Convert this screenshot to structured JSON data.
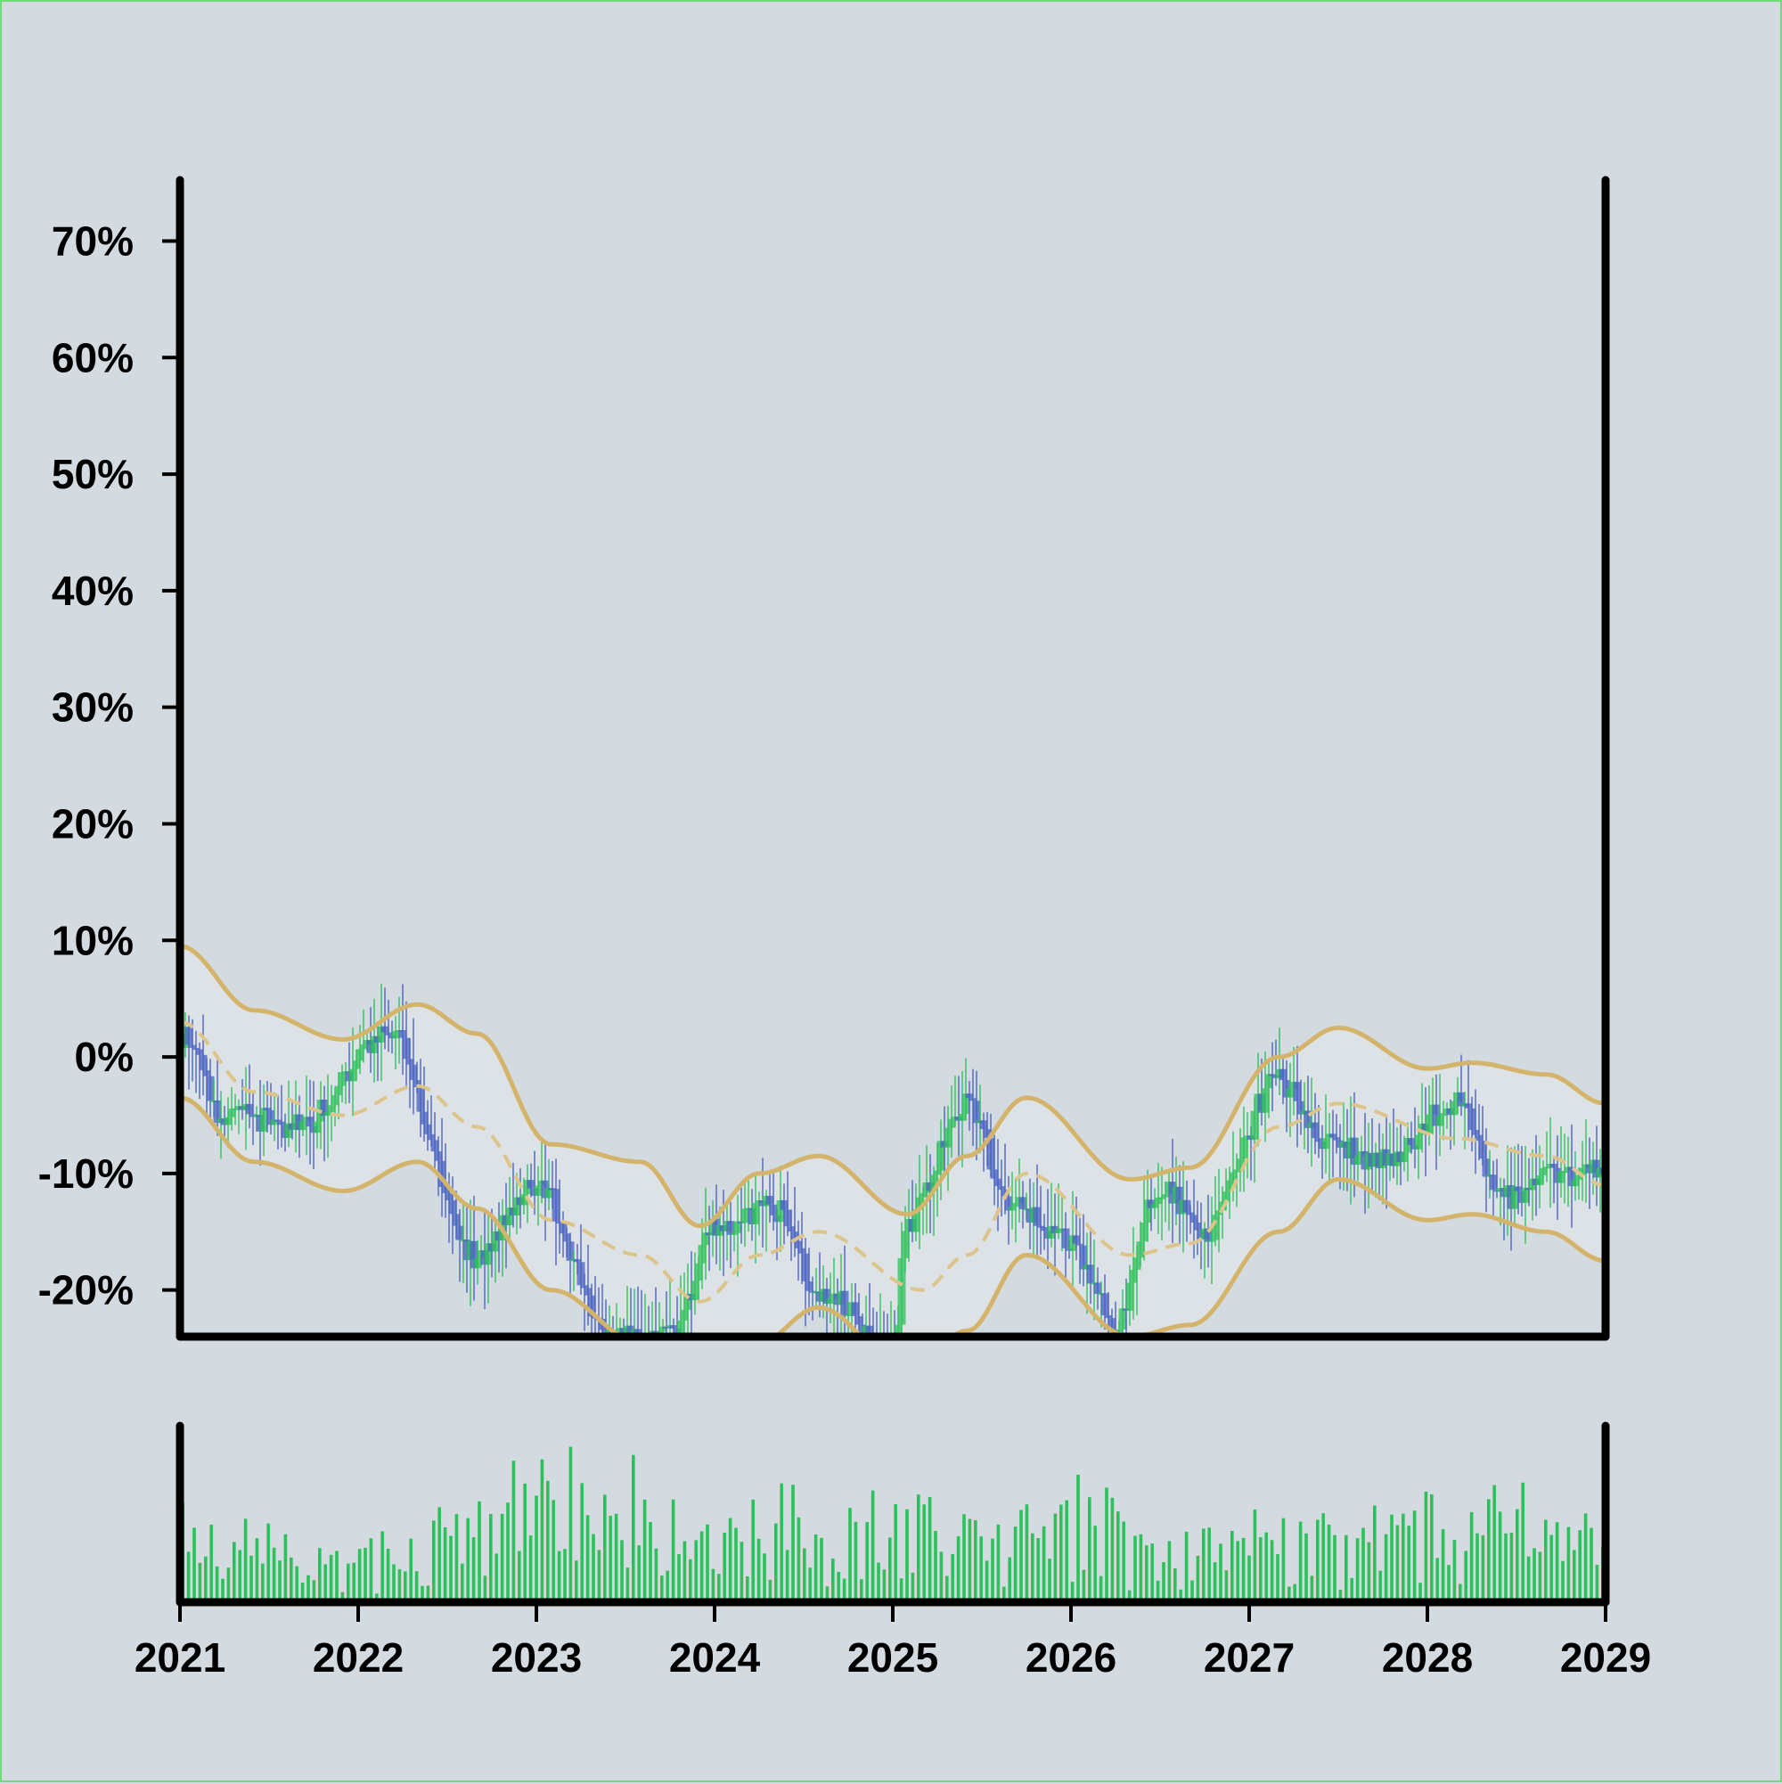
{
  "chart_data": {
    "type": "candlestick",
    "title": "",
    "xlabel": "",
    "ylabel": "",
    "x_ticks": [
      "2021",
      "2022",
      "2023",
      "2024",
      "2025",
      "2026",
      "2027",
      "2028",
      "2029"
    ],
    "x_range": [
      "2021",
      "2029"
    ],
    "y_ticks": [
      "-20%",
      "-10%",
      "0%",
      "10%",
      "20%",
      "30%",
      "40%",
      "50%",
      "60%",
      "70%"
    ],
    "y_range": [
      -24,
      76
    ],
    "grid": false,
    "legend": "none",
    "colors": {
      "up": "#2ec05a",
      "down": "#4a62c2",
      "band": "#d4b46a",
      "band_fill": "#dde3e6",
      "volume": "#2ec05a",
      "background": "#d3dae0",
      "frame": "#6fdc7a"
    },
    "series": [
      {
        "kind": "close",
        "keyframes": [
          [
            "2021-01",
            2
          ],
          [
            "2021-04",
            -5
          ],
          [
            "2021-09",
            -6
          ],
          [
            "2022-03",
            2
          ],
          [
            "2022-09",
            -17
          ],
          [
            "2023-01",
            -11
          ],
          [
            "2023-06",
            -24
          ],
          [
            "2023-10",
            -24
          ],
          [
            "2024-01",
            -15
          ],
          [
            "2024-05",
            -13
          ],
          [
            "2024-08",
            -20
          ],
          [
            "2025-01",
            -25
          ],
          [
            "2025-02",
            -14
          ],
          [
            "2025-06",
            -4
          ],
          [
            "2025-09",
            -13
          ],
          [
            "2026-01",
            -16
          ],
          [
            "2026-04",
            -23
          ],
          [
            "2026-07",
            -11
          ],
          [
            "2026-10",
            -15
          ],
          [
            "2027-03",
            -2
          ],
          [
            "2027-06",
            -7
          ],
          [
            "2027-10",
            -9
          ],
          [
            "2028-03",
            -4
          ],
          [
            "2028-06",
            -12
          ],
          [
            "2028-10",
            -10
          ],
          [
            "2029-01",
            -10
          ]
        ]
      },
      {
        "kind": "band_middle",
        "keyframes": [
          [
            "2021-01",
            3
          ],
          [
            "2021-06",
            -3
          ],
          [
            "2021-12",
            -5
          ],
          [
            "2022-05",
            -2.5
          ],
          [
            "2022-09",
            -6
          ],
          [
            "2023-02",
            -14
          ],
          [
            "2023-08",
            -17
          ],
          [
            "2023-12",
            -21
          ],
          [
            "2024-04",
            -17
          ],
          [
            "2024-08",
            -15
          ],
          [
            "2025-03",
            -20
          ],
          [
            "2025-06",
            -17
          ],
          [
            "2025-10",
            -10
          ],
          [
            "2026-05",
            -17
          ],
          [
            "2026-09",
            -16
          ],
          [
            "2027-03",
            -6
          ],
          [
            "2027-07",
            -4
          ],
          [
            "2028-03",
            -7
          ],
          [
            "2028-09",
            -8.5
          ],
          [
            "2029-01",
            -11
          ]
        ]
      },
      {
        "kind": "band_upper",
        "keyframes": [
          [
            "2021-01",
            9.5
          ],
          [
            "2021-06",
            4
          ],
          [
            "2021-12",
            1.5
          ],
          [
            "2022-05",
            4.5
          ],
          [
            "2022-09",
            2
          ],
          [
            "2023-02",
            -7.5
          ],
          [
            "2023-08",
            -9
          ],
          [
            "2023-12",
            -14.5
          ],
          [
            "2024-04",
            -10
          ],
          [
            "2024-08",
            -8.5
          ],
          [
            "2025-02",
            -13.5
          ],
          [
            "2025-06",
            -8.5
          ],
          [
            "2025-10",
            -3.5
          ],
          [
            "2026-05",
            -10.5
          ],
          [
            "2026-09",
            -9.5
          ],
          [
            "2027-03",
            0
          ],
          [
            "2027-07",
            2.5
          ],
          [
            "2028-01",
            -1
          ],
          [
            "2028-04",
            -0.5
          ],
          [
            "2028-09",
            -1.5
          ],
          [
            "2029-01",
            -4
          ]
        ]
      },
      {
        "kind": "band_lower",
        "keyframes": [
          [
            "2021-01",
            -3.5
          ],
          [
            "2021-06",
            -9
          ],
          [
            "2021-12",
            -11.5
          ],
          [
            "2022-05",
            -9
          ],
          [
            "2022-09",
            -13
          ],
          [
            "2023-02",
            -20
          ],
          [
            "2023-08",
            -24.5
          ],
          [
            "2023-12",
            -27
          ],
          [
            "2024-04",
            -24.5
          ],
          [
            "2024-08",
            -21.5
          ],
          [
            "2025-02",
            -27
          ],
          [
            "2025-06",
            -23.5
          ],
          [
            "2025-10",
            -17
          ],
          [
            "2026-05",
            -24
          ],
          [
            "2026-09",
            -23
          ],
          [
            "2027-03",
            -15
          ],
          [
            "2027-07",
            -10.5
          ],
          [
            "2028-01",
            -14
          ],
          [
            "2028-04",
            -13.5
          ],
          [
            "2028-09",
            -15
          ],
          [
            "2029-01",
            -17.5
          ]
        ]
      }
    ],
    "volume_axis": {
      "min": 0,
      "max": 100
    },
    "volume_profile": [
      [
        "2021-01",
        55
      ],
      [
        "2021-06",
        40
      ],
      [
        "2021-12",
        25
      ],
      [
        "2022-06",
        45
      ],
      [
        "2023-01",
        70
      ],
      [
        "2023-07",
        80
      ],
      [
        "2024-01",
        40
      ],
      [
        "2024-07",
        60
      ],
      [
        "2025-01",
        55
      ],
      [
        "2025-07",
        45
      ],
      [
        "2026-01",
        70
      ],
      [
        "2026-07",
        30
      ],
      [
        "2027-01",
        45
      ],
      [
        "2027-07",
        40
      ],
      [
        "2028-01",
        55
      ],
      [
        "2028-07",
        55
      ],
      [
        "2029-01",
        40
      ]
    ]
  }
}
